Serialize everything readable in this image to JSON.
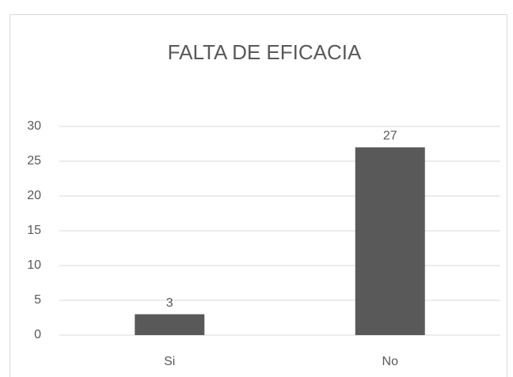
{
  "chart_data": {
    "type": "bar",
    "title": "FALTA DE EFICACIA",
    "categories": [
      "Si",
      "No"
    ],
    "values": [
      3,
      27
    ],
    "color": "#595959",
    "ylim": [
      0,
      30
    ],
    "yticks": [
      0,
      5,
      10,
      15,
      20,
      25,
      30
    ],
    "grid": true,
    "data_labels": true
  }
}
